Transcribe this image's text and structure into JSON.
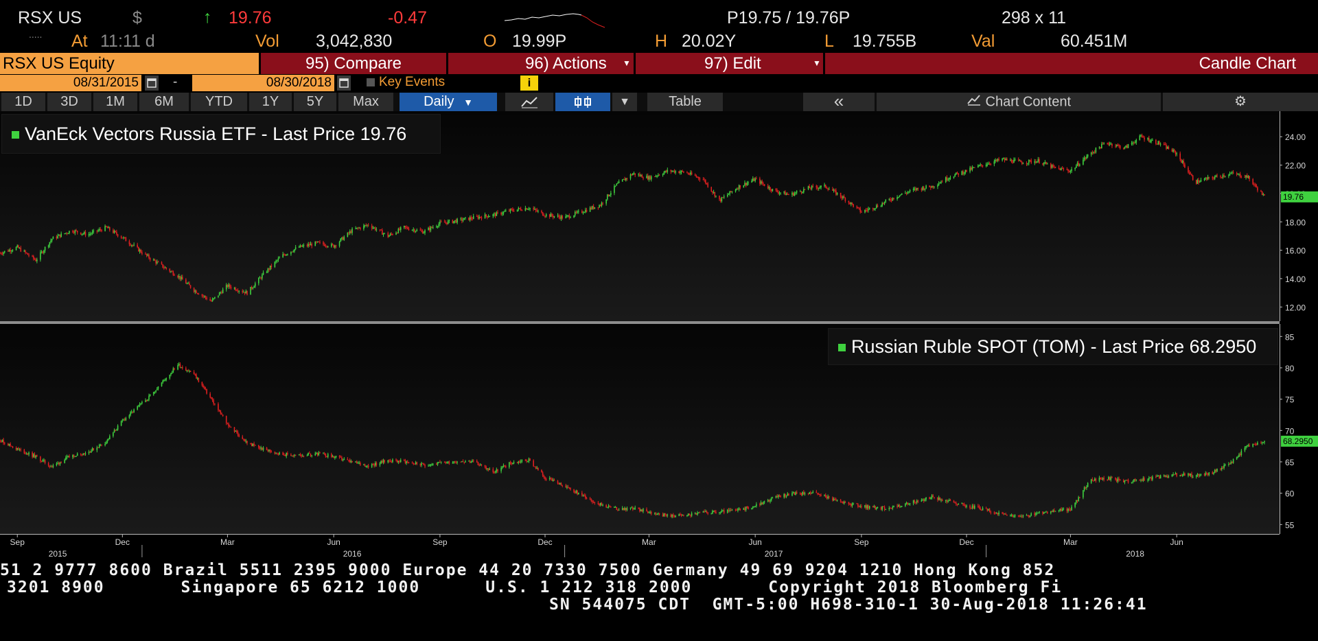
{
  "header": {
    "ticker": "RSX US",
    "currency": "$",
    "arrow": "↑",
    "last": "19.76",
    "change": "-0.47",
    "bidask": "P19.75 / 19.76P",
    "size": "298 x 11",
    "dots": ".....",
    "at": "At",
    "time": "11:11 d",
    "vol_label": "Vol",
    "vol": "3,042,830",
    "open_label": "O",
    "open": "19.99P",
    "high_label": "H",
    "high": "20.02Y",
    "low_label": "L",
    "low": "19.755B",
    "val_label": "Val",
    "val": "60.451M"
  },
  "menu": {
    "security": "RSX US Equity",
    "compare": "95) Compare",
    "actions": "96) Actions",
    "edit": "97) Edit",
    "chart_type": "Candle Chart"
  },
  "dates": {
    "start": "08/31/2015",
    "end": "08/30/2018",
    "separator": "-",
    "key_events": "Key Events",
    "info": "i"
  },
  "tabs": {
    "periods": [
      "1D",
      "3D",
      "1M",
      "6M",
      "YTD",
      "1Y",
      "5Y",
      "Max"
    ],
    "frequency": "Daily",
    "table": "Table",
    "collapse": "«",
    "chart_content": "Chart Content",
    "settings": "⚙"
  },
  "icons": {
    "calendar": "calendar-icon",
    "line_chart": "line-chart-icon",
    "candle": "candle-icon",
    "gear": "gear-icon",
    "info": "info-icon"
  },
  "colors": {
    "up": "#3fd13f",
    "down": "#e02020",
    "orange": "#f5a142",
    "red_bar": "#8a0f1b",
    "active_tab": "#1e5aa8"
  },
  "chart_data": [
    {
      "type": "candlestick",
      "legend": "VanEck Vectors Russia ETF - Last Price 19.76",
      "last_label": "19.76",
      "yticks": [
        "24.00",
        "22.00",
        "20.00",
        "18.00",
        "16.00",
        "14.00",
        "12.00"
      ],
      "ylim": [
        11.0,
        25.8
      ],
      "series": [
        {
          "name": "VanEck Vectors Russia ETF",
          "x": [
            "2015-08-31",
            "2015-09-15",
            "2015-10-01",
            "2015-10-15",
            "2015-11-01",
            "2015-11-15",
            "2015-12-01",
            "2015-12-15",
            "2016-01-05",
            "2016-01-20",
            "2016-02-01",
            "2016-02-15",
            "2016-03-01",
            "2016-03-15",
            "2016-04-01",
            "2016-04-15",
            "2016-05-01",
            "2016-05-15",
            "2016-06-01",
            "2016-06-15",
            "2016-07-01",
            "2016-07-15",
            "2016-08-01",
            "2016-08-15",
            "2016-09-01",
            "2016-09-15",
            "2016-10-01",
            "2016-10-15",
            "2016-11-01",
            "2016-11-15",
            "2016-12-01",
            "2016-12-15",
            "2017-01-01",
            "2017-01-15",
            "2017-02-01",
            "2017-02-15",
            "2017-03-01",
            "2017-03-15",
            "2017-04-01",
            "2017-04-15",
            "2017-05-01",
            "2017-05-15",
            "2017-06-01",
            "2017-06-15",
            "2017-07-01",
            "2017-07-15",
            "2017-08-01",
            "2017-08-15",
            "2017-09-01",
            "2017-09-15",
            "2017-10-01",
            "2017-10-15",
            "2017-11-01",
            "2017-11-15",
            "2017-12-01",
            "2017-12-15",
            "2018-01-01",
            "2018-01-15",
            "2018-02-01",
            "2018-02-15",
            "2018-03-01",
            "2018-03-15",
            "2018-04-01",
            "2018-04-15",
            "2018-05-01",
            "2018-05-15",
            "2018-06-01",
            "2018-06-15",
            "2018-07-01",
            "2018-07-15",
            "2018-08-01",
            "2018-08-15",
            "2018-08-30"
          ],
          "values": [
            15.8,
            16.2,
            15.3,
            16.8,
            17.4,
            17.1,
            17.6,
            16.9,
            15.6,
            14.8,
            14.2,
            13.2,
            12.4,
            13.5,
            13.0,
            14.3,
            15.6,
            16.2,
            16.5,
            16.3,
            17.4,
            17.8,
            17.0,
            17.6,
            17.3,
            17.9,
            18.1,
            18.3,
            18.5,
            18.8,
            19.0,
            18.5,
            18.3,
            18.7,
            19.2,
            20.6,
            21.4,
            21.1,
            21.6,
            21.5,
            21.0,
            19.5,
            20.5,
            21.0,
            20.2,
            19.9,
            20.4,
            20.5,
            19.6,
            18.7,
            19.2,
            19.8,
            20.3,
            20.5,
            21.2,
            21.6,
            22.1,
            22.4,
            22.2,
            22.3,
            21.8,
            21.6,
            22.8,
            23.6,
            23.2,
            24.0,
            23.5,
            22.8,
            20.8,
            21.1,
            21.4,
            21.2,
            19.76
          ]
        }
      ]
    },
    {
      "type": "candlestick",
      "legend": "Russian Ruble SPOT (TOM) - Last Price 68.2950",
      "last_label": "68.2950",
      "yticks": [
        "85",
        "80",
        "75",
        "70",
        "65",
        "60",
        "55"
      ],
      "ylim": [
        53.5,
        87.0
      ],
      "xtick_labels": [
        "Sep",
        "Dec",
        "Mar",
        "Jun",
        "Sep",
        "Dec",
        "Mar",
        "Jun",
        "Sep",
        "Dec",
        "Mar",
        "Jun"
      ],
      "year_labels": [
        "2015",
        "2016",
        "2017",
        "2018"
      ],
      "series": [
        {
          "name": "Russian Ruble SPOT (TOM)",
          "x": [
            "2015-08-31",
            "2015-09-15",
            "2015-10-01",
            "2015-10-15",
            "2015-11-01",
            "2015-11-15",
            "2015-12-01",
            "2015-12-15",
            "2016-01-05",
            "2016-01-20",
            "2016-02-01",
            "2016-02-15",
            "2016-03-01",
            "2016-03-15",
            "2016-04-01",
            "2016-04-15",
            "2016-05-01",
            "2016-05-15",
            "2016-06-01",
            "2016-06-15",
            "2016-07-01",
            "2016-07-15",
            "2016-08-01",
            "2016-08-15",
            "2016-09-01",
            "2016-09-15",
            "2016-10-01",
            "2016-10-15",
            "2016-11-01",
            "2016-11-15",
            "2016-12-01",
            "2016-12-15",
            "2017-01-01",
            "2017-01-15",
            "2017-02-01",
            "2017-02-15",
            "2017-03-01",
            "2017-03-15",
            "2017-04-01",
            "2017-04-15",
            "2017-05-01",
            "2017-05-15",
            "2017-06-01",
            "2017-06-15",
            "2017-07-01",
            "2017-07-15",
            "2017-08-01",
            "2017-08-15",
            "2017-09-01",
            "2017-09-15",
            "2017-10-01",
            "2017-10-15",
            "2017-11-01",
            "2017-11-15",
            "2017-12-01",
            "2017-12-15",
            "2018-01-01",
            "2018-01-15",
            "2018-02-01",
            "2018-02-15",
            "2018-03-01",
            "2018-03-15",
            "2018-04-01",
            "2018-04-15",
            "2018-05-01",
            "2018-05-15",
            "2018-06-01",
            "2018-06-15",
            "2018-07-01",
            "2018-07-15",
            "2018-08-01",
            "2018-08-15",
            "2018-08-30"
          ],
          "values": [
            68.5,
            67.0,
            65.8,
            64.2,
            66.0,
            66.5,
            68.2,
            71.5,
            75.0,
            78.0,
            80.5,
            79.0,
            75.0,
            71.0,
            68.0,
            67.0,
            66.2,
            66.0,
            66.3,
            65.8,
            64.9,
            64.4,
            65.2,
            65.1,
            64.5,
            64.8,
            65.2,
            64.9,
            63.4,
            64.8,
            65.3,
            62.5,
            61.0,
            59.8,
            58.2,
            57.5,
            57.6,
            57.0,
            56.4,
            56.5,
            56.9,
            57.0,
            57.3,
            58.0,
            59.2,
            59.9,
            60.1,
            59.5,
            58.4,
            57.9,
            57.6,
            57.8,
            58.7,
            59.4,
            58.7,
            58.0,
            57.4,
            56.5,
            56.2,
            56.8,
            57.2,
            57.4,
            62.0,
            62.4,
            61.9,
            62.1,
            62.6,
            63.0,
            62.8,
            63.2,
            64.8,
            67.5,
            68.295
          ]
        }
      ]
    }
  ],
  "footer": {
    "line1": "51 2 9777 8600 Brazil 5511 2395 9000 Europe 44 20 7330 7500 Germany 49 69 9204 1210 Hong Kong 852",
    "line2": "3201 8900       Singapore 65 6212 1000      U.S. 1 212 318 2000       Copyright 2018 Bloomberg Fi",
    "line3": "SN 544075 CDT  GMT-5:00 H698-310-1 30-Aug-2018 11:26:41"
  }
}
